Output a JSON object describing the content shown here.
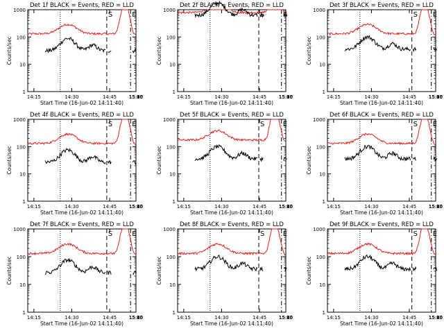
{
  "window": {
    "kind": "lightcurve-grid",
    "colors": {
      "events": "#000000",
      "lld": "#e8211a",
      "axes": "#000000",
      "background": "#ffffff"
    }
  },
  "chart_data": {
    "type": "line",
    "layout": "grid-3x3",
    "x_tick_labels": [
      "14:15",
      "14:30",
      "14:45",
      "15:00",
      "15:15",
      "15:30",
      "15:45"
    ],
    "x_range_minutes_after_14_00": [
      13,
      55
    ],
    "y_tick_labels": [
      "1",
      "10",
      "100",
      "1000"
    ],
    "ylim": [
      1,
      1000
    ],
    "ylog": true,
    "xlabel": "Start Time (16-Jun-02 14:11:40)",
    "ylabel": "Counts/sec",
    "marker_labels": [
      "S",
      "E"
    ],
    "panels": [
      {
        "title": "Det 1f BLACK = Events, RED = LLD",
        "lines": {
          "dot": 30,
          "dash1": 73,
          "dash2": 95
        },
        "peak": {
          "x": 90,
          "y": 1000
        },
        "events_base": 35,
        "lld_base": 150
      },
      {
        "title": "Det 2f BLACK = Events, RED = LLD",
        "lines": {
          "dot": 30,
          "dash1": 75,
          "dash2": 96
        },
        "peak": {
          "x": 90,
          "y": 900
        },
        "events_base": 700,
        "lld_base": 900
      },
      {
        "title": "Det 3f BLACK = Events, RED = LLD",
        "lines": {
          "dot": 30,
          "dash1": 78,
          "dash2": 96
        },
        "peak": {
          "x": 90,
          "y": 1000
        },
        "events_base": 40,
        "lld_base": 150
      },
      {
        "title": "Det 4f BLACK = Events, RED = LLD",
        "lines": {
          "dot": 30,
          "dash1": 73,
          "dash2": 95
        },
        "peak": {
          "x": 90,
          "y": 1000
        },
        "events_base": 30,
        "lld_base": 150
      },
      {
        "title": "Det 5f BLACK = Events, RED = LLD",
        "lines": {
          "dot": 30,
          "dash1": 75,
          "dash2": 96
        },
        "peak": {
          "x": 90,
          "y": 2000
        },
        "events_base": 40,
        "lld_base": 200
      },
      {
        "title": "Det 6f BLACK = Events, RED = LLD",
        "lines": {
          "dot": 30,
          "dash1": 78,
          "dash2": 96
        },
        "peak": {
          "x": 90,
          "y": 1000
        },
        "events_base": 40,
        "lld_base": 150
      },
      {
        "title": "Det 7f BLACK = Events, RED = LLD",
        "lines": {
          "dot": 30,
          "dash1": 73,
          "dash2": 95
        },
        "peak": {
          "x": 90,
          "y": 1000
        },
        "events_base": 30,
        "lld_base": 150
      },
      {
        "title": "Det 8f BLACK = Events, RED = LLD",
        "lines": {
          "dot": 30,
          "dash1": 75,
          "dash2": 96
        },
        "peak": {
          "x": 90,
          "y": 1000
        },
        "events_base": 40,
        "lld_base": 150
      },
      {
        "title": "Det 9f BLACK = Events, RED = LLD",
        "lines": {
          "dot": 30,
          "dash1": 78,
          "dash2": 96
        },
        "peak": {
          "x": 90,
          "y": 1000
        },
        "events_base": 40,
        "lld_base": 150
      }
    ]
  }
}
